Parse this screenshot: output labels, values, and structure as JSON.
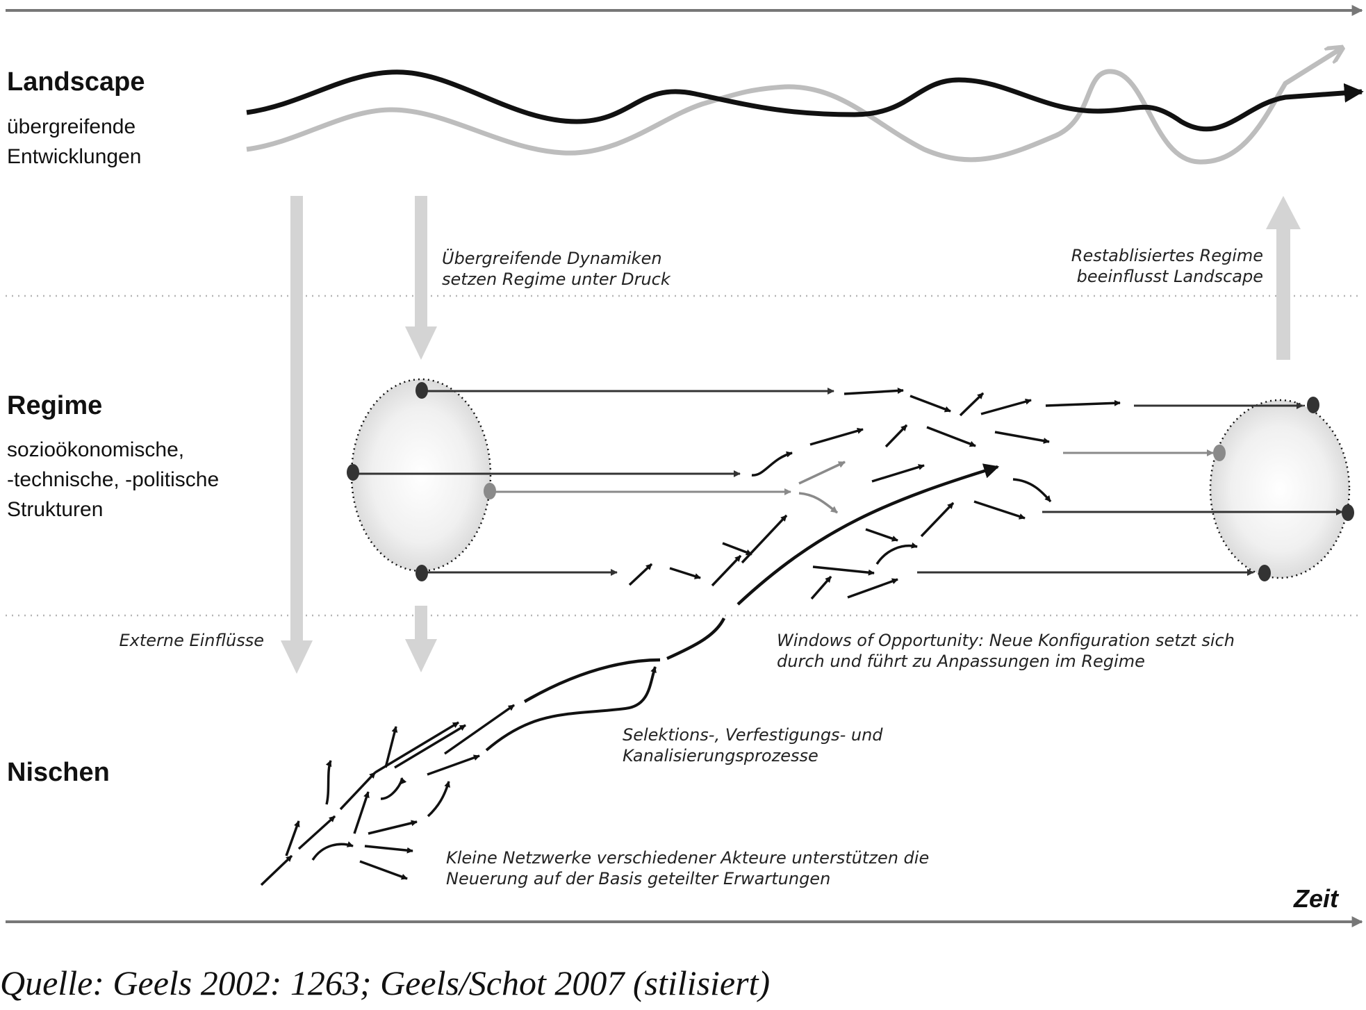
{
  "levels": {
    "landscape": {
      "title": "Landscape",
      "subtitle_lines": [
        "übergreifende",
        "Entwicklungen"
      ]
    },
    "regime": {
      "title": "Regime",
      "subtitle_lines": [
        "sozioökonomische,",
        "-technische, -politische",
        "Strukturen"
      ]
    },
    "niches": {
      "title": "Nischen"
    }
  },
  "annotations": {
    "pressure": [
      "Übergreifende Dynamiken",
      "setzen Regime unter Druck"
    ],
    "restabilized": [
      "Restablisiertes Regime",
      "beeinflusst Landscape"
    ],
    "external": "Externe Einflüsse",
    "windows": [
      "Windows of Opportunity: Neue Konfiguration setzt sich",
      "durch und führt zu Anpassungen im Regime"
    ],
    "selection": [
      "Selektions-, Verfestigungs- und",
      "Kanalisierungsprozesse"
    ],
    "networks": [
      "Kleine Netzwerke verschiedener Akteure unterstützen die",
      "Neuerung auf der Basis geteilter Erwartungen"
    ]
  },
  "time_axis": {
    "label": "Zeit"
  },
  "source": "Quelle: Geels 2002: 1263; Geels/Schot 2007 (stilisiert)",
  "colors": {
    "ink": "#111111",
    "dark_gray": "#333333",
    "mid_gray": "#8a8a8a",
    "light_gray": "#c8c8c8",
    "pale_gray": "#d4d4d4"
  }
}
